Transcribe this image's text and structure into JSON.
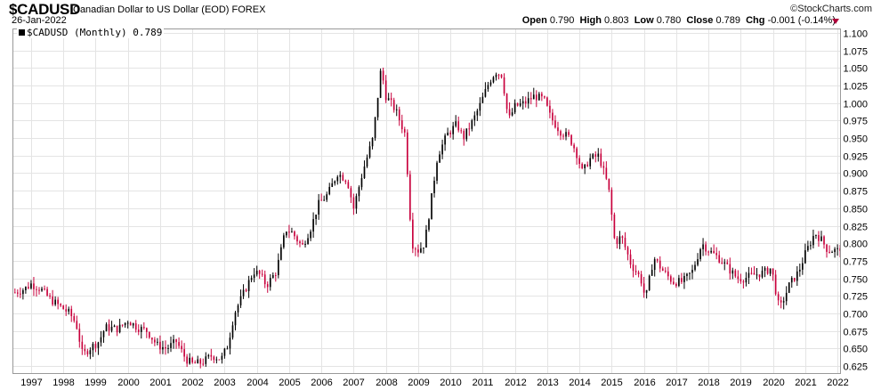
{
  "header": {
    "symbol": "$CADUSD",
    "description": "Canadian Dollar to US Dollar (EOD)  FOREX",
    "date": "26-Jan-2022",
    "brand": "StockCharts.com",
    "open_label": "Open",
    "open": "0.790",
    "high_label": "High",
    "high": "0.803",
    "low_label": "Low",
    "low": "0.780",
    "close_label": "Close",
    "close": "0.789",
    "chg_label": "Chg",
    "chg": "-0.001 (-0.14%)"
  },
  "legend": "$CADUSD (Monthly) 0.789",
  "colors": {
    "up": "#000000",
    "down": "#c8003c",
    "grid": "#e4e4e4",
    "frame": "#999999"
  },
  "chart_data": {
    "type": "candlestick",
    "interval": "monthly",
    "x_ticks": [
      "1997",
      "1998",
      "1999",
      "2000",
      "2001",
      "2002",
      "2003",
      "2004",
      "2005",
      "2006",
      "2007",
      "2008",
      "2009",
      "2010",
      "2011",
      "2012",
      "2013",
      "2014",
      "2015",
      "2016",
      "2017",
      "2018",
      "2019",
      "2020",
      "2021",
      "2022"
    ],
    "y_ticks": [
      "0.625",
      "0.650",
      "0.675",
      "0.700",
      "0.725",
      "0.750",
      "0.775",
      "0.800",
      "0.825",
      "0.850",
      "0.875",
      "0.900",
      "0.925",
      "0.950",
      "0.975",
      "1.000",
      "1.025",
      "1.050",
      "1.075",
      "1.100"
    ],
    "ylim": [
      0.615,
      1.105
    ],
    "xlim": [
      1996.45,
      2022.08
    ],
    "close_series": [
      {
        "year": 1996.5,
        "v": 0.73
      },
      {
        "year": 1996.8,
        "v": 0.735
      },
      {
        "year": 1997.0,
        "v": 0.742
      },
      {
        "year": 1997.3,
        "v": 0.735
      },
      {
        "year": 1997.6,
        "v": 0.72
      },
      {
        "year": 1997.9,
        "v": 0.71
      },
      {
        "year": 1998.2,
        "v": 0.7
      },
      {
        "year": 1998.4,
        "v": 0.685
      },
      {
        "year": 1998.6,
        "v": 0.64
      },
      {
        "year": 1998.8,
        "v": 0.65
      },
      {
        "year": 1999.1,
        "v": 0.66
      },
      {
        "year": 1999.3,
        "v": 0.68
      },
      {
        "year": 1999.7,
        "v": 0.678
      },
      {
        "year": 2000.0,
        "v": 0.69
      },
      {
        "year": 2000.3,
        "v": 0.68
      },
      {
        "year": 2000.6,
        "v": 0.675
      },
      {
        "year": 2000.9,
        "v": 0.655
      },
      {
        "year": 2001.2,
        "v": 0.65
      },
      {
        "year": 2001.5,
        "v": 0.66
      },
      {
        "year": 2001.8,
        "v": 0.635
      },
      {
        "year": 2002.0,
        "v": 0.628
      },
      {
        "year": 2002.3,
        "v": 0.63
      },
      {
        "year": 2002.6,
        "v": 0.64
      },
      {
        "year": 2002.9,
        "v": 0.635
      },
      {
        "year": 2003.1,
        "v": 0.655
      },
      {
        "year": 2003.3,
        "v": 0.7
      },
      {
        "year": 2003.6,
        "v": 0.73
      },
      {
        "year": 2003.9,
        "v": 0.76
      },
      {
        "year": 2004.1,
        "v": 0.755
      },
      {
        "year": 2004.3,
        "v": 0.74
      },
      {
        "year": 2004.6,
        "v": 0.76
      },
      {
        "year": 2004.9,
        "v": 0.82
      },
      {
        "year": 2005.1,
        "v": 0.815
      },
      {
        "year": 2005.4,
        "v": 0.795
      },
      {
        "year": 2005.7,
        "v": 0.825
      },
      {
        "year": 2005.9,
        "v": 0.855
      },
      {
        "year": 2006.2,
        "v": 0.87
      },
      {
        "year": 2006.5,
        "v": 0.9
      },
      {
        "year": 2006.8,
        "v": 0.89
      },
      {
        "year": 2007.0,
        "v": 0.85
      },
      {
        "year": 2007.3,
        "v": 0.905
      },
      {
        "year": 2007.6,
        "v": 0.95
      },
      {
        "year": 2007.85,
        "v": 1.05
      },
      {
        "year": 2008.0,
        "v": 1.01
      },
      {
        "year": 2008.3,
        "v": 0.99
      },
      {
        "year": 2008.6,
        "v": 0.955
      },
      {
        "year": 2008.8,
        "v": 0.8
      },
      {
        "year": 2009.0,
        "v": 0.79
      },
      {
        "year": 2009.2,
        "v": 0.8
      },
      {
        "year": 2009.4,
        "v": 0.86
      },
      {
        "year": 2009.6,
        "v": 0.925
      },
      {
        "year": 2009.9,
        "v": 0.955
      },
      {
        "year": 2010.2,
        "v": 0.97
      },
      {
        "year": 2010.4,
        "v": 0.95
      },
      {
        "year": 2010.7,
        "v": 0.975
      },
      {
        "year": 2010.9,
        "v": 0.995
      },
      {
        "year": 2011.2,
        "v": 1.03
      },
      {
        "year": 2011.4,
        "v": 1.045
      },
      {
        "year": 2011.6,
        "v": 1.04
      },
      {
        "year": 2011.8,
        "v": 0.975
      },
      {
        "year": 2012.0,
        "v": 0.995
      },
      {
        "year": 2012.3,
        "v": 1.0
      },
      {
        "year": 2012.6,
        "v": 1.01
      },
      {
        "year": 2012.9,
        "v": 1.005
      },
      {
        "year": 2013.1,
        "v": 0.98
      },
      {
        "year": 2013.4,
        "v": 0.96
      },
      {
        "year": 2013.7,
        "v": 0.95
      },
      {
        "year": 2013.9,
        "v": 0.93
      },
      {
        "year": 2014.1,
        "v": 0.9
      },
      {
        "year": 2014.3,
        "v": 0.92
      },
      {
        "year": 2014.6,
        "v": 0.925
      },
      {
        "year": 2014.9,
        "v": 0.88
      },
      {
        "year": 2015.1,
        "v": 0.8
      },
      {
        "year": 2015.3,
        "v": 0.81
      },
      {
        "year": 2015.6,
        "v": 0.77
      },
      {
        "year": 2015.9,
        "v": 0.75
      },
      {
        "year": 2016.05,
        "v": 0.72
      },
      {
        "year": 2016.3,
        "v": 0.78
      },
      {
        "year": 2016.6,
        "v": 0.76
      },
      {
        "year": 2016.9,
        "v": 0.745
      },
      {
        "year": 2017.2,
        "v": 0.745
      },
      {
        "year": 2017.5,
        "v": 0.76
      },
      {
        "year": 2017.8,
        "v": 0.8
      },
      {
        "year": 2018.0,
        "v": 0.79
      },
      {
        "year": 2018.3,
        "v": 0.78
      },
      {
        "year": 2018.6,
        "v": 0.765
      },
      {
        "year": 2018.9,
        "v": 0.75
      },
      {
        "year": 2019.1,
        "v": 0.75
      },
      {
        "year": 2019.4,
        "v": 0.755
      },
      {
        "year": 2019.7,
        "v": 0.758
      },
      {
        "year": 2019.95,
        "v": 0.765
      },
      {
        "year": 2020.2,
        "v": 0.705
      },
      {
        "year": 2020.5,
        "v": 0.74
      },
      {
        "year": 2020.8,
        "v": 0.76
      },
      {
        "year": 2021.0,
        "v": 0.785
      },
      {
        "year": 2021.3,
        "v": 0.815
      },
      {
        "year": 2021.5,
        "v": 0.805
      },
      {
        "year": 2021.7,
        "v": 0.79
      },
      {
        "year": 2021.9,
        "v": 0.79
      },
      {
        "year": 2022.05,
        "v": 0.789
      }
    ]
  }
}
